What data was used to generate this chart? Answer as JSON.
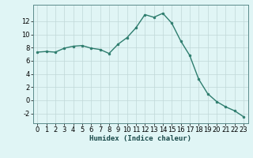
{
  "x": [
    0,
    1,
    2,
    3,
    4,
    5,
    6,
    7,
    8,
    9,
    10,
    11,
    12,
    13,
    14,
    15,
    16,
    17,
    18,
    19,
    20,
    21,
    22,
    23
  ],
  "y": [
    7.3,
    7.4,
    7.3,
    7.9,
    8.2,
    8.3,
    7.9,
    7.7,
    7.1,
    8.5,
    9.5,
    11.0,
    13.0,
    12.6,
    13.2,
    11.7,
    9.0,
    6.8,
    3.2,
    1.0,
    -0.2,
    -1.0,
    -1.6,
    -2.5
  ],
  "line_color": "#2e7d6e",
  "marker": "o",
  "marker_size": 2.0,
  "linewidth": 1.0,
  "bg_color": "#e0f5f5",
  "grid_color": "#c0d8d8",
  "xlabel": "Humidex (Indice chaleur)",
  "xlim": [
    -0.5,
    23.5
  ],
  "ylim": [
    -3.5,
    14.5
  ],
  "yticks": [
    -2,
    0,
    2,
    4,
    6,
    8,
    10,
    12
  ],
  "xticks": [
    0,
    1,
    2,
    3,
    4,
    5,
    6,
    7,
    8,
    9,
    10,
    11,
    12,
    13,
    14,
    15,
    16,
    17,
    18,
    19,
    20,
    21,
    22,
    23
  ],
  "xlabel_fontsize": 6.5,
  "tick_fontsize": 6.0,
  "spine_color": "#5a8a8a"
}
